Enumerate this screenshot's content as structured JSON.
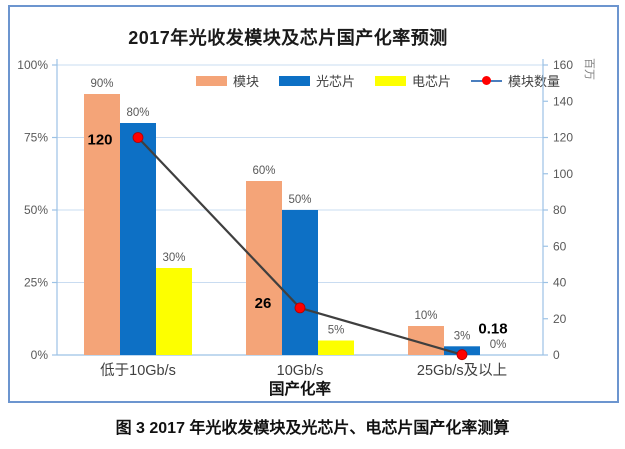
{
  "figure": {
    "caption": "图 3 2017 年光收发模块及光芯片、电芯片国产化率测算"
  },
  "chart_data": {
    "type": "bar+line",
    "title": "2017年光收发模块及芯片国产化率预测",
    "xlabel": "国产化率",
    "categories": [
      "低于10Gb/s",
      "10Gb/s",
      "25Gb/s及以上"
    ],
    "series": [
      {
        "name": "模块",
        "type": "bar",
        "axis": "left",
        "color": "#F4A478",
        "values": [
          90,
          60,
          10
        ],
        "labels": [
          "90%",
          "60%",
          "10%"
        ]
      },
      {
        "name": "光芯片",
        "type": "bar",
        "axis": "left",
        "color": "#0D70C5",
        "values": [
          80,
          50,
          3
        ],
        "labels": [
          "80%",
          "50%",
          "3%"
        ]
      },
      {
        "name": "电芯片",
        "type": "bar",
        "axis": "left",
        "color": "#FDFF00",
        "values": [
          30,
          5,
          0
        ],
        "labels": [
          "30%",
          "5%",
          "0%"
        ]
      },
      {
        "name": "模块数量",
        "type": "line",
        "axis": "right",
        "color": "#3F3F3F",
        "legend_color": "#4A7EBE",
        "marker_color": "#FF0000",
        "values": [
          120,
          26,
          0.18
        ],
        "labels": [
          "120",
          "26",
          "0.18"
        ]
      }
    ],
    "left_axis": {
      "min": 0,
      "max": 100,
      "ticks": [
        "0%",
        "25%",
        "50%",
        "75%",
        "100%"
      ]
    },
    "right_axis": {
      "min": 0,
      "max": 160,
      "ticks": [
        0,
        20,
        40,
        60,
        80,
        100,
        120,
        140,
        160
      ],
      "unit": "百万"
    },
    "legend_position": "top",
    "grid": true
  },
  "colors": {
    "border": "#6C95CF",
    "axis_line": "#9CC2E5",
    "grid_line": "#C9DCF1",
    "tick_text": "#595959",
    "bar_label_text": "#595959",
    "category_text": "#3F3F3F",
    "line_label_text": "#000000"
  }
}
